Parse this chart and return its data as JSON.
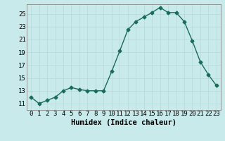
{
  "x": [
    0,
    1,
    2,
    3,
    4,
    5,
    6,
    7,
    8,
    9,
    10,
    11,
    12,
    13,
    14,
    15,
    16,
    17,
    18,
    19,
    20,
    21,
    22,
    23
  ],
  "y": [
    12.0,
    11.0,
    11.5,
    12.0,
    13.0,
    13.5,
    13.2,
    13.0,
    13.0,
    13.0,
    16.0,
    19.2,
    22.5,
    23.8,
    24.5,
    25.2,
    26.0,
    25.2,
    25.2,
    23.8,
    20.8,
    17.5,
    15.5,
    13.8
  ],
  "xlabel": "Humidex (Indice chaleur)",
  "ylabel": "",
  "xlim": [
    -0.5,
    23.5
  ],
  "ylim": [
    10.0,
    26.5
  ],
  "yticks": [
    11,
    13,
    15,
    17,
    19,
    21,
    23,
    25
  ],
  "xticks": [
    0,
    1,
    2,
    3,
    4,
    5,
    6,
    7,
    8,
    9,
    10,
    11,
    12,
    13,
    14,
    15,
    16,
    17,
    18,
    19,
    20,
    21,
    22,
    23
  ],
  "xtick_labels": [
    "0",
    "1",
    "2",
    "3",
    "4",
    "5",
    "6",
    "7",
    "8",
    "9",
    "10",
    "11",
    "12",
    "13",
    "14",
    "15",
    "16",
    "17",
    "18",
    "19",
    "20",
    "21",
    "22",
    "23"
  ],
  "line_color": "#1a6b5a",
  "marker": "D",
  "markersize": 2.5,
  "linewidth": 1.0,
  "bg_color": "#c8eaea",
  "grid_color_major": "#b8d8d8",
  "grid_color_minor": "#d4e8e8",
  "axis_bg": "#c8eaea",
  "label_fontsize": 7.5,
  "tick_fontsize": 6.5
}
